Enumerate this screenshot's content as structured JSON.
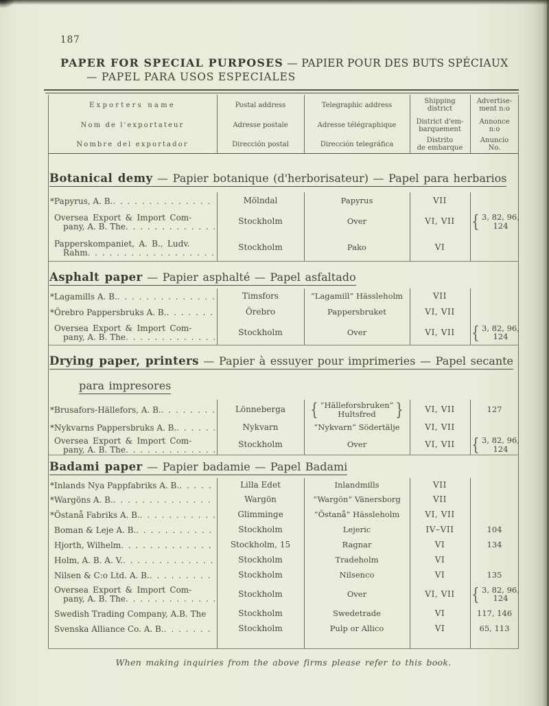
{
  "colors": {
    "paper": "#eaebd9",
    "ink": "#43443a",
    "rule": "#505244"
  },
  "page": {
    "number": "187",
    "title_en": "PAPER FOR SPECIAL PURPOSES",
    "title_rest": " — PAPIER POUR DES BUTS SPÉCIAUX",
    "title_line2": "— PAPEL PARA USOS ESPECIALES",
    "footer": "When making inquiries from the above firms please refer to this book."
  },
  "table_header": {
    "exporter": [
      "Exporters name",
      "Nom de l'exportateur",
      "Nombre del exportador"
    ],
    "postal": [
      "Postal address",
      "Adresse postale",
      "Dirección postal"
    ],
    "telegraphic": [
      "Telegraphic address",
      "Adresse télégraphique",
      "Dirección telegráfica"
    ],
    "shipping": [
      "Shipping\ndistrict",
      "District d'em-\nbarquement",
      "Distrito\nde embarque"
    ],
    "advert": [
      "Advertise-\nment n:o",
      "Annonce\nn:o",
      "Anuncio\nNo."
    ]
  },
  "sections": [
    {
      "title_en": "Botanical demy",
      "title_rest": " — Papier botanique (d'herborisateur) — Papel para herbarios",
      "rows": [
        {
          "name_lines": [
            "*Papyrus, A. B."
          ],
          "dots": true,
          "postal": "Mölndal",
          "tele": [
            "Papyrus"
          ],
          "shipping": "VII",
          "ad": []
        },
        {
          "name_lines": [
            "Oversea Export & Import Com-",
            "pany, A. B. The"
          ],
          "dots": true,
          "postal": "Stockholm",
          "tele": [
            "Over"
          ],
          "shipping": "VI, VII",
          "ad": [
            "3, 82, 96,",
            "124"
          ],
          "ad_brace": true
        },
        {
          "name_lines": [
            "Papperskompaniet, A. B., Ludv.",
            "Rahm"
          ],
          "dots": true,
          "postal": "Stockholm",
          "tele": [
            "Pako"
          ],
          "shipping": "VI",
          "ad": []
        }
      ]
    },
    {
      "title_en": "Asphalt paper",
      "title_rest": " — Papier asphalté — Papel asfaltado",
      "rows": [
        {
          "name_lines": [
            "*Lagamills A. B."
          ],
          "dots": true,
          "postal": "Timsfors",
          "tele": [
            "“Lagamill” Hässleholm"
          ],
          "shipping": "VII",
          "ad": []
        },
        {
          "name_lines": [
            "*Örebro Pappersbruks A. B."
          ],
          "dots": true,
          "postal": "Örebro",
          "tele": [
            "Pappersbruket"
          ],
          "shipping": "VI, VII",
          "ad": []
        },
        {
          "name_lines": [
            "Oversea Export & Import Com-",
            "pany, A. B. The"
          ],
          "dots": true,
          "postal": "Stockholm",
          "tele": [
            "Over"
          ],
          "shipping": "VI, VII",
          "ad": [
            "3, 82, 96,",
            "124"
          ],
          "ad_brace": true
        }
      ]
    },
    {
      "title_en": "Drying paper, printers",
      "title_rest": " — Papier à essuyer pour imprimeries — Papel secante",
      "title_line2": "para impresores",
      "rows": [
        {
          "name_lines": [
            "*Brusafors-Hällefors, A. B."
          ],
          "dots": true,
          "postal": "Lönneberga",
          "tele": [
            "“Hälleforsbruken”",
            "Hultsfred"
          ],
          "tele_brace": true,
          "shipping": "VI, VII",
          "ad": [
            "127"
          ]
        },
        {
          "name_lines": [
            "*Nykvarns Pappersbruks A. B."
          ],
          "dots": true,
          "postal": "Nykvarn",
          "tele": [
            "“Nykvarn” Södertälje"
          ],
          "shipping": "VI, VII",
          "ad": []
        },
        {
          "name_lines": [
            "Oversea Export & Import Com-",
            "pany, A. B. The"
          ],
          "dots": true,
          "postal": "Stockholm",
          "tele": [
            "Over"
          ],
          "shipping": "VI, VII",
          "ad": [
            "3, 82, 96,",
            "124"
          ],
          "ad_brace": true
        }
      ]
    },
    {
      "title_en": "Badami paper",
      "title_rest": " — Papier badamie — Papel Badami",
      "rows": [
        {
          "name_lines": [
            "*Inlands Nya Pappfabriks A. B."
          ],
          "dots": true,
          "postal": "Lilla Edet",
          "tele": [
            "Inlandmills"
          ],
          "shipping": "VII",
          "ad": []
        },
        {
          "name_lines": [
            "*Wargöns A. B."
          ],
          "dots": true,
          "postal": "Wargön",
          "tele": [
            "“Wargön” Vänersborg"
          ],
          "shipping": "VII",
          "ad": []
        },
        {
          "name_lines": [
            "*Östanå Fabriks A. B."
          ],
          "dots": true,
          "postal": "Glimminge",
          "tele": [
            "“Östanå” Hässleholm"
          ],
          "shipping": "VI, VII",
          "ad": []
        },
        {
          "name_lines": [
            "Boman & Leje A. B."
          ],
          "dots": true,
          "postal": "Stockholm",
          "tele": [
            "Lejeric"
          ],
          "shipping": "IV–VII",
          "ad": [
            "104"
          ]
        },
        {
          "name_lines": [
            "Hjorth, Wilhelm"
          ],
          "dots": true,
          "postal": "Stockholm, 15",
          "tele": [
            "Ragnar"
          ],
          "shipping": "VI",
          "ad": [
            "134"
          ]
        },
        {
          "name_lines": [
            "Holm, A. B. A. V."
          ],
          "dots": true,
          "postal": "Stockholm",
          "tele": [
            "Tradeholm"
          ],
          "shipping": "VI",
          "ad": []
        },
        {
          "name_lines": [
            "Nilsen & C:o Ltd. A. B."
          ],
          "dots": true,
          "postal": "Stockholm",
          "tele": [
            "Nilsenco"
          ],
          "shipping": "VI",
          "ad": [
            "135"
          ]
        },
        {
          "name_lines": [
            "Oversea Export & Import Com-",
            "pany, A. B. The"
          ],
          "dots": true,
          "postal": "Stockholm",
          "tele": [
            "Over"
          ],
          "shipping": "VI, VII",
          "ad": [
            "3, 82, 96,",
            "124"
          ],
          "ad_brace": true
        },
        {
          "name_lines": [
            "Swedish Trading Company, A.B. The"
          ],
          "dots": false,
          "postal": "Stockholm",
          "tele": [
            "Swedetrade"
          ],
          "shipping": "VI",
          "ad": [
            "117, 146"
          ]
        },
        {
          "name_lines": [
            "Svenska Alliance Co. A. B."
          ],
          "dots": true,
          "postal": "Stockholm",
          "tele": [
            "Pulp or Allico"
          ],
          "shipping": "VI",
          "ad": [
            "65, 113"
          ]
        }
      ]
    }
  ]
}
